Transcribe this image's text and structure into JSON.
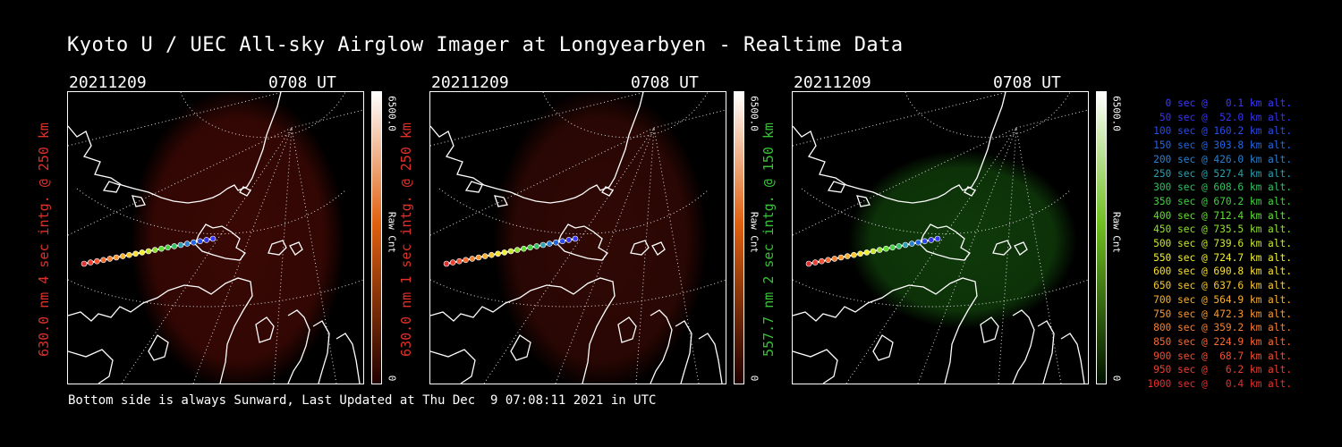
{
  "title": "Kyoto U / UEC All-sky Airglow Imager at Longyearbyen - Realtime Data",
  "footer": "Bottom side is always Sunward, Last Updated at Thu Dec  9 07:08:11 2021 in UTC",
  "panels": [
    {
      "date": "20211209",
      "time": "0708 UT",
      "ylabel": "630.0 nm 4 sec intg. @ 250 km",
      "label_color": "#e0302a",
      "cbar_max": "6500.0",
      "cbar_min": "0",
      "cbar_unit": "Raw Cnt",
      "glow_color": "#3a0804",
      "cbar_top": "#ffffff",
      "cbar_mid": "#e06010",
      "cbar_bottom": "#200000"
    },
    {
      "date": "20211209",
      "time": "0708 UT",
      "ylabel": "630.0 nm 1 sec intg. @ 250 km",
      "label_color": "#e0302a",
      "cbar_max": "6500.0",
      "cbar_min": "0",
      "cbar_unit": "Raw Cnt",
      "glow_color": "#300804",
      "cbar_top": "#ffffff",
      "cbar_mid": "#e06010",
      "cbar_bottom": "#200000"
    },
    {
      "date": "20211209",
      "time": "0708 UT",
      "ylabel": "557.7 nm 2 sec intg. @ 150 km",
      "label_color": "#35c435",
      "cbar_max": "6500.0",
      "cbar_min": "0",
      "cbar_unit": "Raw Cnt",
      "glow_color": "#0f3a0a",
      "cbar_top": "#ffffff",
      "cbar_mid": "#70c020",
      "cbar_bottom": "#001000"
    }
  ],
  "legend": [
    {
      "text": "   0 sec @   0.1 km alt.",
      "color": "#3a3aff"
    },
    {
      "text": "  50 sec @  52.0 km alt.",
      "color": "#3434ee"
    },
    {
      "text": " 100 sec @ 160.2 km alt.",
      "color": "#2a4bea"
    },
    {
      "text": " 150 sec @ 303.8 km alt.",
      "color": "#2266e0"
    },
    {
      "text": " 200 sec @ 426.0 km alt.",
      "color": "#2a80d0"
    },
    {
      "text": " 250 sec @ 527.4 km alt.",
      "color": "#2aa0b0"
    },
    {
      "text": " 300 sec @ 608.6 km alt.",
      "color": "#30c060"
    },
    {
      "text": " 350 sec @ 670.2 km alt.",
      "color": "#40d040"
    },
    {
      "text": " 400 sec @ 712.4 km alt.",
      "color": "#60e030"
    },
    {
      "text": " 450 sec @ 735.5 km alt.",
      "color": "#90e030"
    },
    {
      "text": " 500 sec @ 739.6 km alt.",
      "color": "#c8e830"
    },
    {
      "text": " 550 sec @ 724.7 km alt.",
      "color": "#f0f030"
    },
    {
      "text": " 600 sec @ 690.8 km alt.",
      "color": "#f8e030"
    },
    {
      "text": " 650 sec @ 637.6 km alt.",
      "color": "#f8c830"
    },
    {
      "text": " 700 sec @ 564.9 km alt.",
      "color": "#f8b030"
    },
    {
      "text": " 750 sec @ 472.3 km alt.",
      "color": "#f89830"
    },
    {
      "text": " 800 sec @ 359.2 km alt.",
      "color": "#f88030"
    },
    {
      "text": " 850 sec @ 224.9 km alt.",
      "color": "#f86830"
    },
    {
      "text": " 900 sec @  68.7 km alt.",
      "color": "#f05030"
    },
    {
      "text": " 950 sec @   6.2 km alt.",
      "color": "#e84030"
    },
    {
      "text": "1000 sec @   0.4 km alt.",
      "color": "#e03030"
    }
  ]
}
